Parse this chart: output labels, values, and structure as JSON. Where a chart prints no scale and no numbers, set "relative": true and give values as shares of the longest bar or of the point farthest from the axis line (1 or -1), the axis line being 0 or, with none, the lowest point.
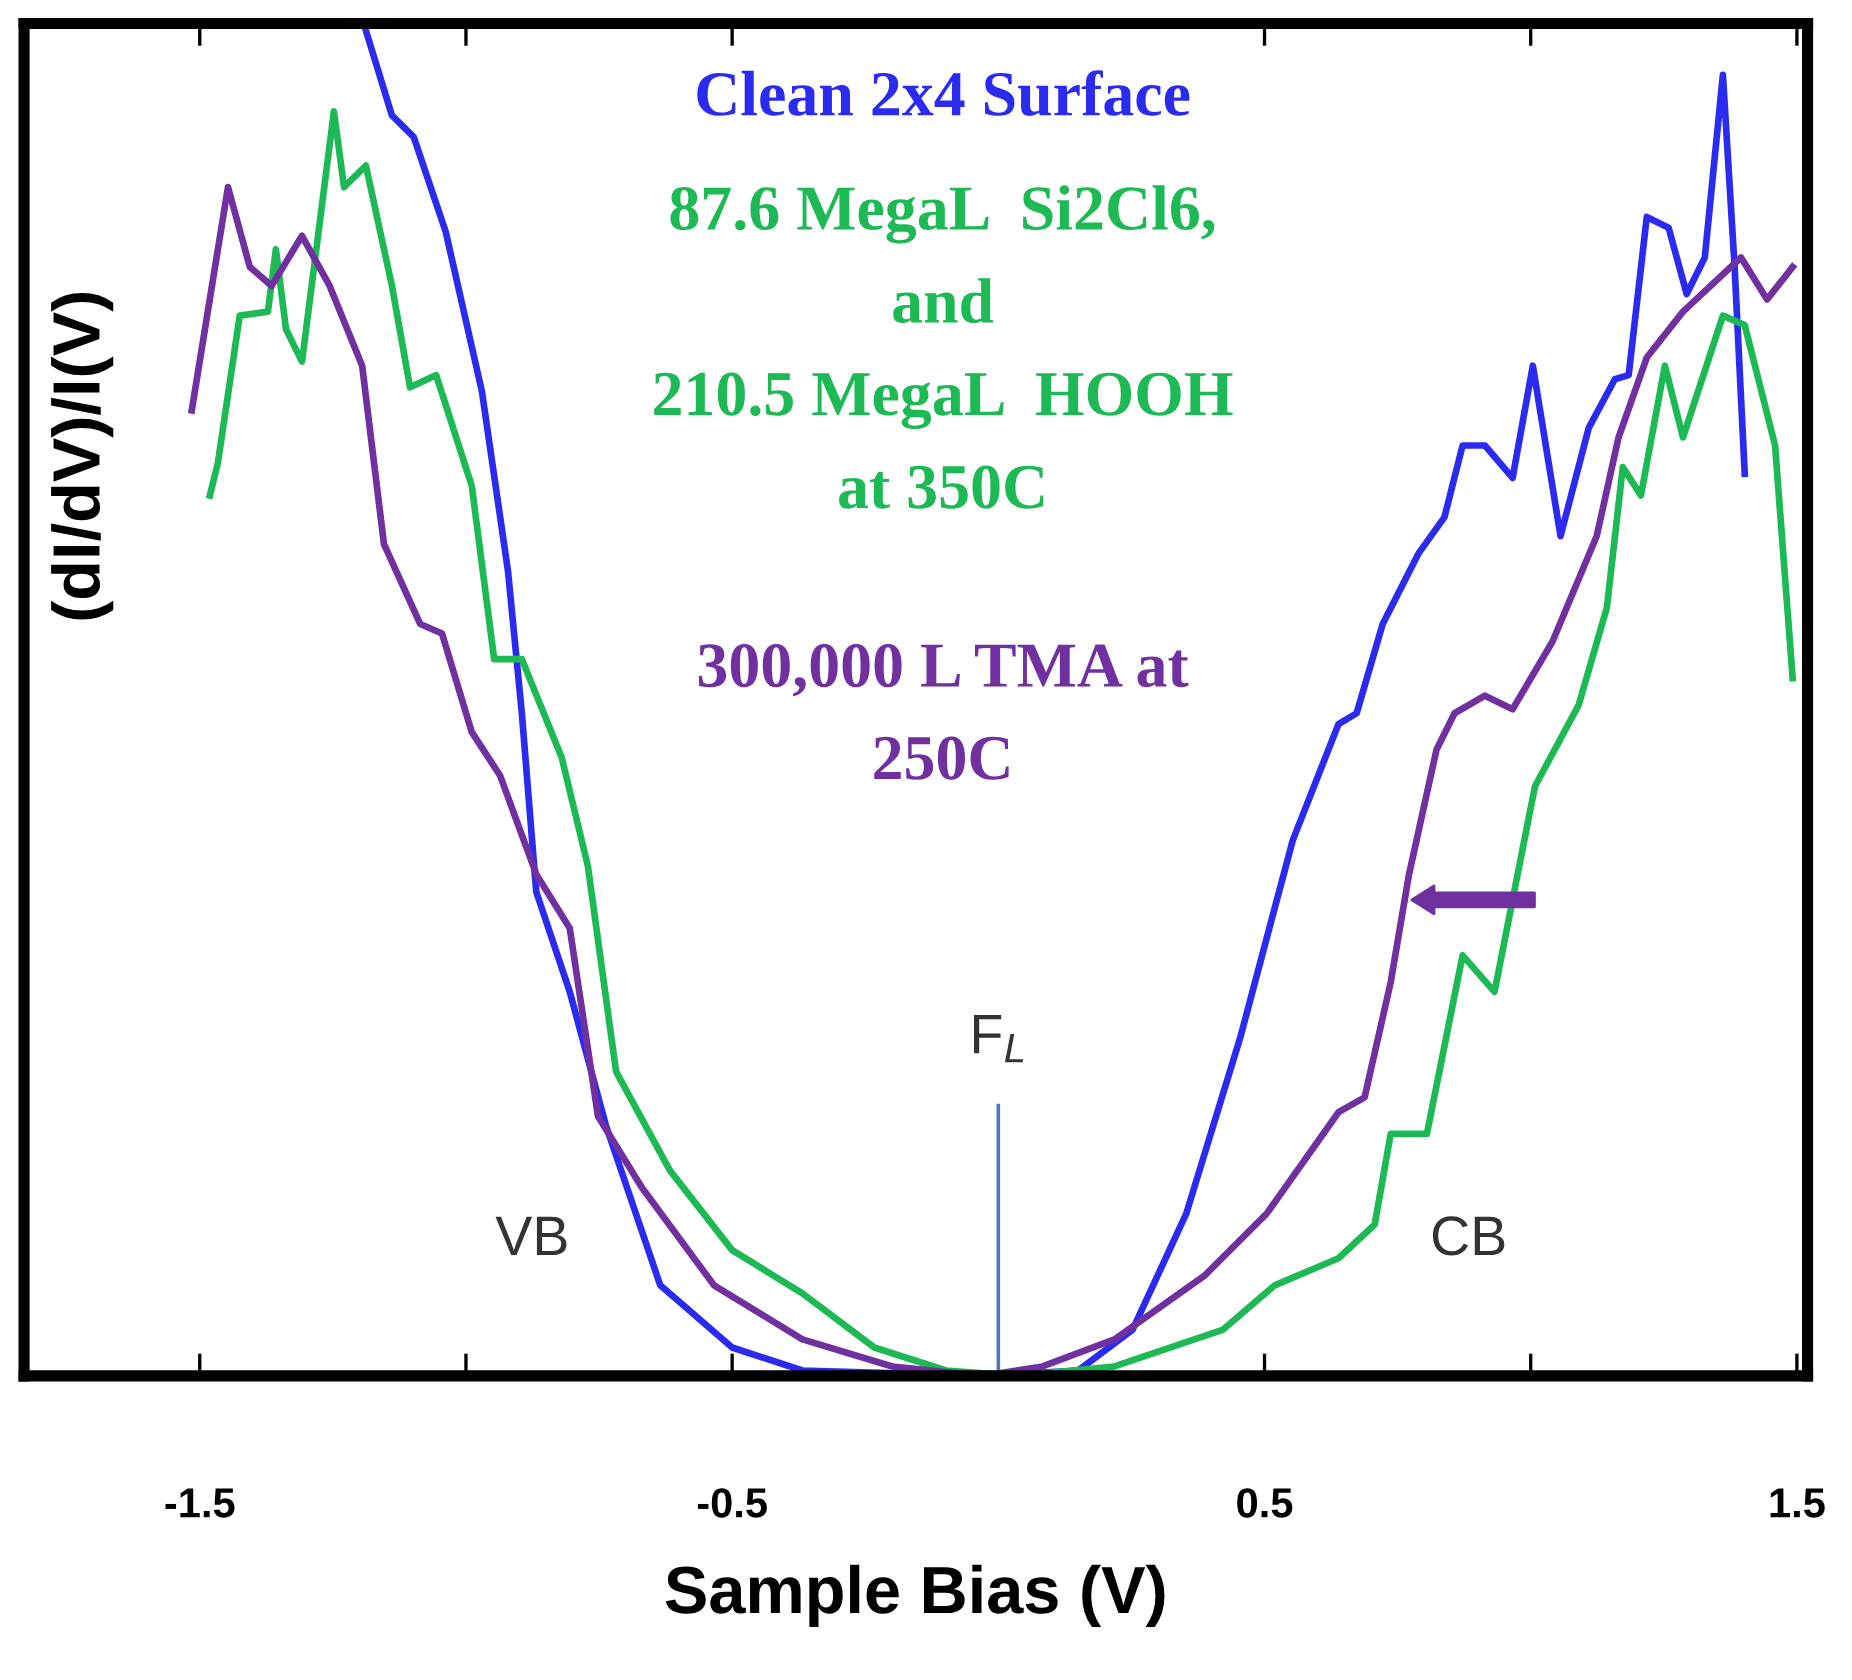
{
  "chart_data": {
    "type": "line",
    "relative": true,
    "xlabel": "Sample Bias (V)",
    "ylabel": "(dI/dV)/I(V)",
    "xlim": [
      -1.83,
      1.52
    ],
    "xticks": [
      -1.5,
      {
        "value": -1,
        "label": null
      },
      -0.5,
      0.5,
      {
        "value": 1,
        "label": null
      },
      1.5
    ],
    "grid": false,
    "legend": "top",
    "marker": "none",
    "line_style": "solid",
    "ref_lines": [
      {
        "axis": "x",
        "value": 0,
        "label": "F$_{L}$",
        "color": "#4a7ab5"
      }
    ],
    "annotations": [
      "VB",
      "CB"
    ],
    "series": [
      {
        "name": "Clean 2x4 Surface",
        "color": "#2b2bf0",
        "x": [
          -1.192,
          -1.139,
          -1.098,
          -1.038,
          -0.97,
          -0.921,
          -0.895,
          -0.868,
          -0.805,
          -0.737,
          -0.635,
          -0.5,
          -0.368,
          -0.03,
          0.15,
          0.252,
          0.353,
          0.455,
          0.553,
          0.639,
          0.673,
          0.722,
          0.789,
          0.838,
          0.872,
          0.914,
          0.966,
          1.004,
          1.056,
          1.109,
          1.158,
          1.184,
          1.218,
          1.259,
          1.293,
          1.327,
          1.361,
          1.383,
          1.402
        ],
        "values": [
          1.0,
          0.932,
          0.916,
          0.846,
          0.728,
          0.595,
          0.49,
          0.358,
          0.284,
          0.185,
          0.067,
          0.021,
          0.004,
          0,
          0.004,
          0.034,
          0.12,
          0.251,
          0.396,
          0.482,
          0.49,
          0.556,
          0.608,
          0.635,
          0.688,
          0.688,
          0.664,
          0.747,
          0.621,
          0.701,
          0.737,
          0.74,
          0.857,
          0.849,
          0.8,
          0.827,
          0.962,
          0.82,
          0.667
        ]
      },
      {
        "name": "87.6 MegaL  Si2Cl6,\nand\n210.5 MegaL  HOOH\nat 350C",
        "color": "#1db954",
        "x": [
          -1.481,
          -1.466,
          -1.425,
          -1.372,
          -1.357,
          -1.338,
          -1.308,
          -1.248,
          -1.229,
          -1.188,
          -1.139,
          -1.105,
          -1.056,
          -0.989,
          -0.947,
          -0.895,
          -0.82,
          -0.771,
          -0.718,
          -0.617,
          -0.5,
          -0.368,
          -0.233,
          -0.098,
          0.038,
          0.218,
          0.421,
          0.519,
          0.639,
          0.707,
          0.737,
          0.805,
          0.872,
          0.932,
          1.008,
          1.09,
          1.143,
          1.173,
          1.207,
          1.252,
          1.286,
          1.361,
          1.402,
          1.459,
          1.492
        ],
        "values": [
          0.651,
          0.675,
          0.784,
          0.787,
          0.833,
          0.774,
          0.75,
          0.935,
          0.879,
          0.895,
          0.806,
          0.731,
          0.74,
          0.658,
          0.53,
          0.53,
          0.457,
          0.377,
          0.225,
          0.152,
          0.093,
          0.061,
          0.021,
          0.004,
          0,
          0.007,
          0.034,
          0.067,
          0.087,
          0.112,
          0.179,
          0.179,
          0.311,
          0.284,
          0.436,
          0.496,
          0.568,
          0.672,
          0.651,
          0.747,
          0.694,
          0.784,
          0.777,
          0.688,
          0.516
        ]
      },
      {
        "name": "300,000 L TMA at\n250C",
        "color": "#7030a0",
        "x": [
          -1.515,
          -1.447,
          -1.406,
          -1.365,
          -1.308,
          -1.256,
          -1.195,
          -1.154,
          -1.086,
          -1.045,
          -0.989,
          -0.936,
          -0.868,
          -0.805,
          -0.752,
          -0.669,
          -0.534,
          -0.368,
          -0.199,
          -0.03,
          0.083,
          0.218,
          0.387,
          0.504,
          0.639,
          0.688,
          0.737,
          0.771,
          0.823,
          0.857,
          0.914,
          0.966,
          1.041,
          1.124,
          1.165,
          1.218,
          1.286,
          1.395,
          1.444,
          1.492
        ],
        "values": [
          0.714,
          0.879,
          0.82,
          0.806,
          0.843,
          0.806,
          0.747,
          0.615,
          0.556,
          0.549,
          0.476,
          0.444,
          0.371,
          0.331,
          0.192,
          0.139,
          0.067,
          0.027,
          0.007,
          0,
          0.007,
          0.027,
          0.074,
          0.12,
          0.195,
          0.206,
          0.291,
          0.37,
          0.463,
          0.49,
          0.503,
          0.493,
          0.543,
          0.621,
          0.694,
          0.753,
          0.787,
          0.827,
          0.796,
          0.82
        ]
      }
    ]
  }
}
